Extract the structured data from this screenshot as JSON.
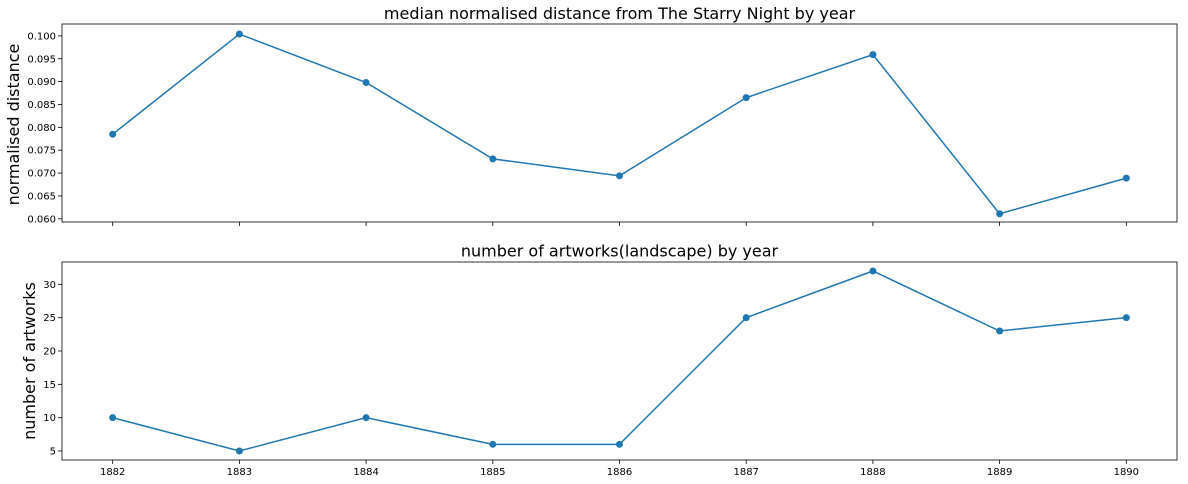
{
  "chart_data": [
    {
      "type": "line",
      "title": "median normalised distance from The Starry Night by year",
      "xlabel": "",
      "ylabel": "normalised distance",
      "x": [
        1882,
        1883,
        1884,
        1885,
        1886,
        1887,
        1888,
        1889,
        1890
      ],
      "series": [
        {
          "values": [
            0.0785,
            0.1004,
            0.0898,
            0.0731,
            0.0694,
            0.0865,
            0.0959,
            0.0611,
            0.0689
          ]
        }
      ],
      "yticks": [
        0.06,
        0.065,
        0.07,
        0.075,
        0.08,
        0.085,
        0.09,
        0.095,
        0.1
      ],
      "ytick_labels": [
        "0.060",
        "0.065",
        "0.070",
        "0.075",
        "0.080",
        "0.085",
        "0.090",
        "0.095",
        "0.100"
      ],
      "xticks_labeled": false,
      "ylim": [
        0.0593,
        0.1026
      ],
      "xlim": [
        1881.6,
        1890.4
      ],
      "grid": false,
      "color": "#1f77b4"
    },
    {
      "type": "line",
      "title": "number of artworks(landscape) by year",
      "xlabel": "",
      "ylabel": "number of artworks",
      "x": [
        1882,
        1883,
        1884,
        1885,
        1886,
        1887,
        1888,
        1889,
        1890
      ],
      "series": [
        {
          "values": [
            10,
            5,
            10,
            6,
            6,
            25,
            32,
            23,
            25
          ]
        }
      ],
      "yticks": [
        5,
        10,
        15,
        20,
        25,
        30
      ],
      "ytick_labels": [
        "5",
        "10",
        "15",
        "20",
        "25",
        "30"
      ],
      "xticks_labeled": true,
      "xtick_labels": [
        "1882",
        "1883",
        "1884",
        "1885",
        "1886",
        "1887",
        "1888",
        "1889",
        "1890"
      ],
      "ylim": [
        3.65,
        33.35
      ],
      "xlim": [
        1881.6,
        1890.4
      ],
      "grid": false,
      "color": "#1f77b4"
    }
  ]
}
